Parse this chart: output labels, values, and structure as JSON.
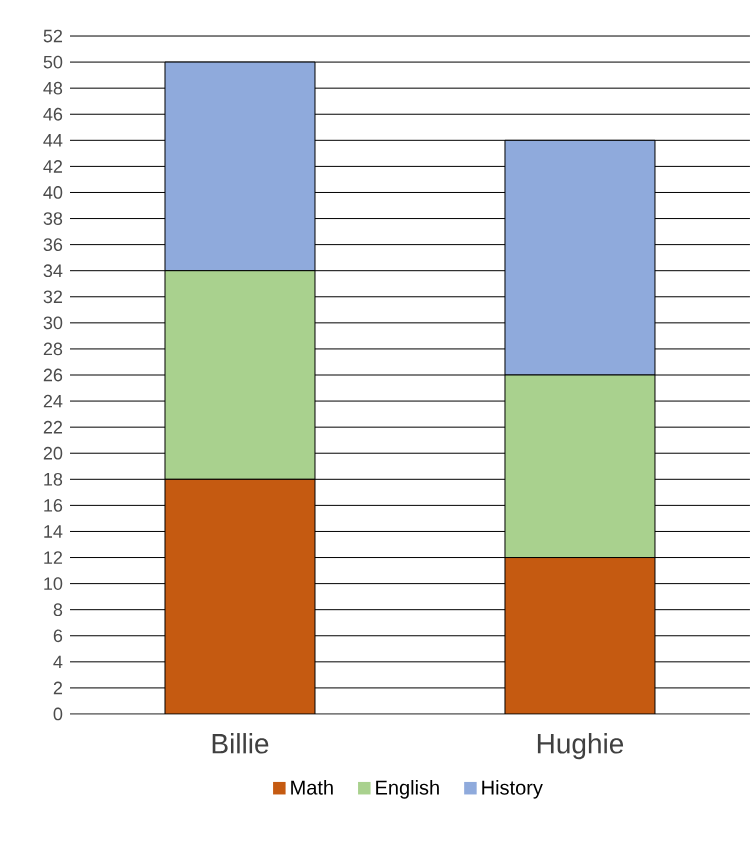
{
  "chart_data": {
    "type": "bar",
    "stacked": true,
    "categories": [
      "Billie",
      "Hughie"
    ],
    "series": [
      {
        "name": "Math",
        "color": "#c55a11",
        "values": [
          18,
          12
        ]
      },
      {
        "name": "English",
        "color": "#a9d18e",
        "values": [
          16,
          14
        ]
      },
      {
        "name": "History",
        "color": "#8faadc",
        "values": [
          16,
          18
        ]
      }
    ],
    "ylim": [
      0,
      52
    ],
    "yticks": [
      0,
      2,
      4,
      6,
      8,
      10,
      12,
      14,
      16,
      18,
      20,
      22,
      24,
      26,
      28,
      30,
      32,
      34,
      36,
      38,
      40,
      42,
      44,
      46,
      48,
      50,
      52
    ],
    "grid": "y",
    "legend": "bottom"
  }
}
